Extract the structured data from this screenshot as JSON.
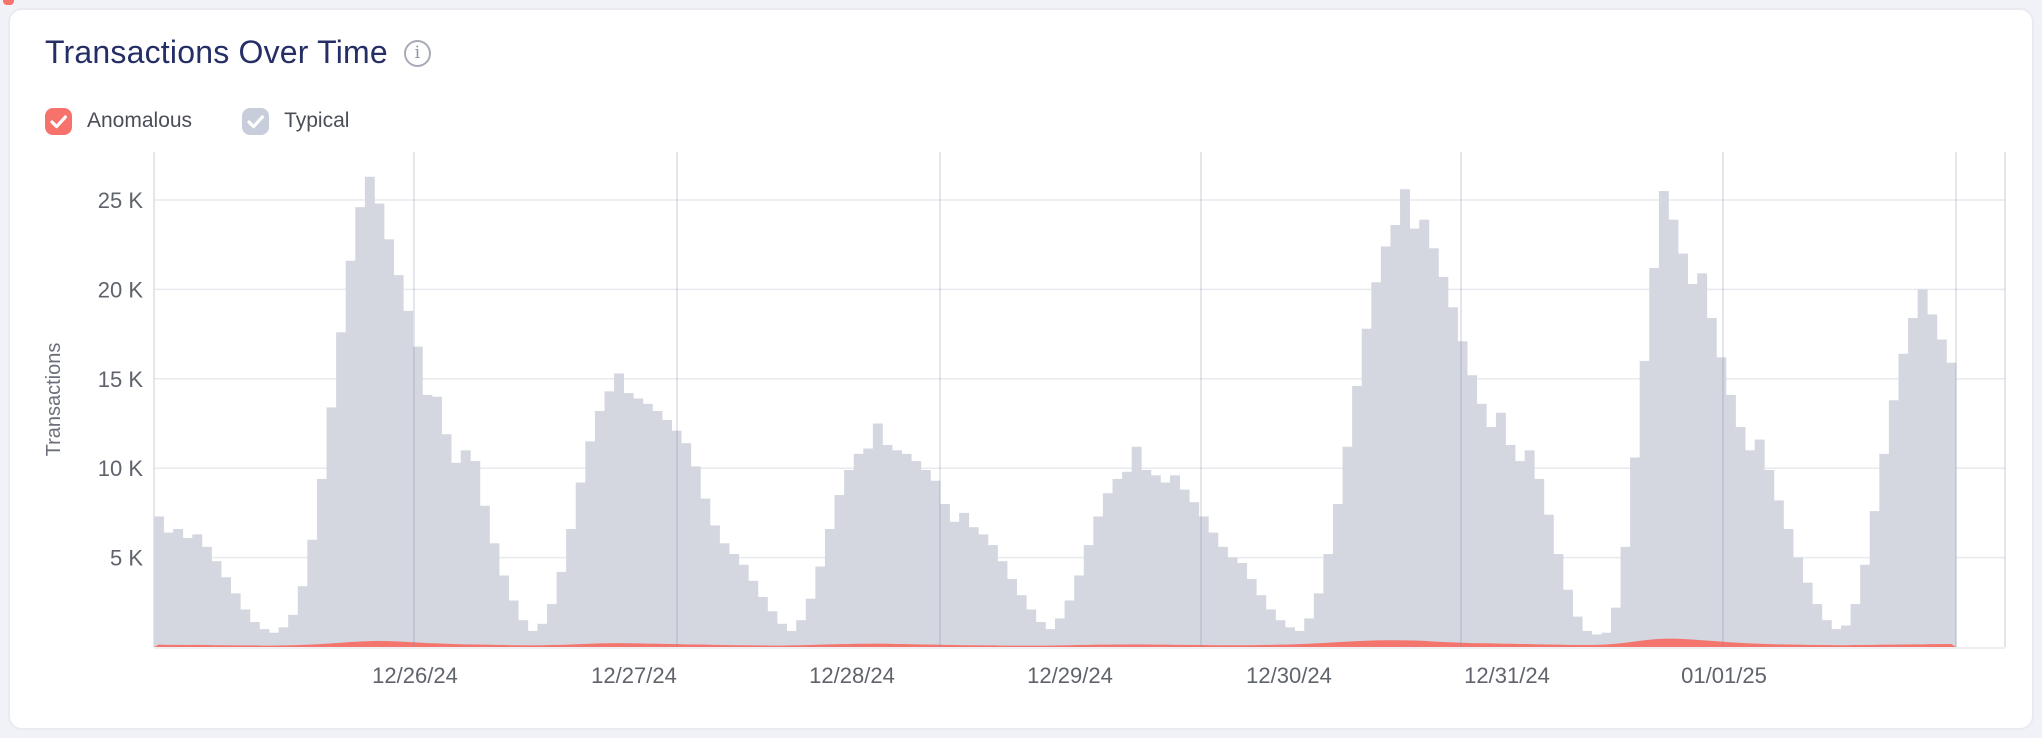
{
  "card": {
    "title": "Transactions Over Time",
    "info_icon_glyph": "i"
  },
  "legend": [
    {
      "label": "Anomalous",
      "checked": true,
      "checkbox_color": "#f7726a"
    },
    {
      "label": "Typical",
      "checked": true,
      "checkbox_color": "#c7cdda"
    }
  ],
  "colors": {
    "background": "#f0f2f7",
    "card_border": "#e9ebf1",
    "title": "#252f66",
    "tick_text": "#5f636b",
    "axis_name_text": "#6b6f7a",
    "h_gridline": "#e9eaef",
    "v_gridline": "rgba(124,134,165,0.28)",
    "axis_line": "#dcdee5",
    "typical_bar": "#d4d7e0",
    "anomalous_area": "#f4756d"
  },
  "chart_data": {
    "type": "bar",
    "title": "Transactions Over Time",
    "xlabel": "",
    "ylabel": "Transactions",
    "x_axis_type": "time",
    "x_tick_labels": [
      "12/26/24",
      "12/27/24",
      "12/28/24",
      "12/29/24",
      "12/30/24",
      "12/31/24",
      "01/01/25"
    ],
    "y_tick_labels": [
      "5 K",
      "10 K",
      "15 K",
      "20 K",
      "25 K"
    ],
    "y_tick_values_thousands": [
      5,
      10,
      15,
      20,
      25
    ],
    "ylim_thousands": [
      0,
      27.8
    ],
    "grid": true,
    "legend_position": "top-left",
    "bucket_count": 188,
    "series": [
      {
        "name": "Typical",
        "color": "#d4d7e0",
        "values_thousands": [
          7.3,
          6.4,
          6.6,
          6.1,
          6.3,
          5.6,
          4.8,
          3.9,
          3.0,
          2.1,
          1.4,
          1.0,
          0.8,
          1.1,
          1.8,
          3.4,
          6.0,
          9.4,
          13.4,
          17.6,
          21.6,
          24.6,
          26.3,
          24.8,
          22.8,
          20.8,
          18.8,
          16.8,
          14.1,
          14.0,
          11.9,
          10.3,
          11.0,
          10.4,
          7.9,
          5.8,
          4.0,
          2.6,
          1.5,
          0.9,
          1.3,
          2.4,
          4.2,
          6.6,
          9.2,
          11.5,
          13.2,
          14.3,
          15.3,
          14.2,
          13.9,
          13.6,
          13.2,
          12.7,
          12.1,
          11.4,
          10.1,
          8.3,
          6.8,
          5.8,
          5.2,
          4.6,
          3.7,
          2.8,
          2.0,
          1.3,
          0.9,
          1.5,
          2.7,
          4.5,
          6.6,
          8.5,
          9.9,
          10.8,
          11.1,
          12.5,
          11.3,
          11.0,
          10.8,
          10.4,
          9.9,
          9.3,
          8.0,
          7.0,
          7.5,
          6.7,
          6.3,
          5.7,
          4.8,
          3.8,
          2.9,
          2.1,
          1.4,
          1.0,
          1.6,
          2.6,
          4.0,
          5.7,
          7.3,
          8.6,
          9.4,
          9.8,
          11.2,
          9.9,
          9.6,
          9.2,
          9.6,
          8.8,
          8.1,
          7.3,
          6.4,
          5.6,
          5.0,
          4.7,
          3.8,
          2.9,
          2.1,
          1.5,
          1.1,
          0.9,
          1.6,
          3.0,
          5.2,
          8.0,
          11.2,
          14.6,
          17.8,
          20.4,
          22.4,
          23.6,
          25.6,
          23.4,
          23.9,
          22.3,
          20.7,
          19.0,
          17.1,
          15.2,
          13.6,
          12.3,
          13.1,
          11.3,
          10.4,
          11.0,
          9.4,
          7.4,
          5.2,
          3.2,
          1.7,
          0.9,
          0.7,
          0.8,
          2.2,
          5.6,
          10.6,
          16.0,
          21.2,
          25.5,
          23.9,
          22.0,
          20.3,
          20.9,
          18.4,
          16.2,
          14.1,
          12.3,
          11.0,
          11.6,
          9.9,
          8.2,
          6.6,
          5.0,
          3.6,
          2.4,
          1.5,
          1.0,
          1.2,
          2.4,
          4.6,
          7.6,
          10.8,
          13.8,
          16.4,
          18.4,
          20.0,
          18.6,
          17.2,
          15.9
        ]
      },
      {
        "name": "Anomalous",
        "color": "#f4756d",
        "values_thousands": [
          0.13,
          0.12,
          0.12,
          0.11,
          0.12,
          0.11,
          0.1,
          0.1,
          0.09,
          0.09,
          0.09,
          0.08,
          0.08,
          0.09,
          0.1,
          0.12,
          0.14,
          0.17,
          0.2,
          0.24,
          0.28,
          0.31,
          0.33,
          0.34,
          0.33,
          0.31,
          0.28,
          0.25,
          0.22,
          0.2,
          0.18,
          0.16,
          0.15,
          0.14,
          0.13,
          0.12,
          0.11,
          0.1,
          0.1,
          0.09,
          0.1,
          0.11,
          0.12,
          0.14,
          0.16,
          0.18,
          0.2,
          0.21,
          0.22,
          0.21,
          0.2,
          0.19,
          0.18,
          0.17,
          0.16,
          0.15,
          0.14,
          0.13,
          0.12,
          0.11,
          0.1,
          0.1,
          0.09,
          0.09,
          0.08,
          0.08,
          0.09,
          0.1,
          0.11,
          0.13,
          0.15,
          0.16,
          0.17,
          0.18,
          0.18,
          0.19,
          0.18,
          0.17,
          0.16,
          0.15,
          0.14,
          0.13,
          0.12,
          0.11,
          0.1,
          0.1,
          0.09,
          0.09,
          0.08,
          0.08,
          0.08,
          0.08,
          0.08,
          0.08,
          0.09,
          0.1,
          0.11,
          0.12,
          0.13,
          0.13,
          0.14,
          0.14,
          0.15,
          0.14,
          0.13,
          0.13,
          0.12,
          0.12,
          0.11,
          0.11,
          0.1,
          0.1,
          0.1,
          0.1,
          0.1,
          0.11,
          0.12,
          0.13,
          0.14,
          0.16,
          0.18,
          0.21,
          0.24,
          0.27,
          0.3,
          0.33,
          0.35,
          0.37,
          0.38,
          0.38,
          0.37,
          0.36,
          0.34,
          0.31,
          0.28,
          0.26,
          0.24,
          0.22,
          0.21,
          0.2,
          0.19,
          0.18,
          0.17,
          0.16,
          0.15,
          0.14,
          0.13,
          0.12,
          0.11,
          0.11,
          0.12,
          0.14,
          0.18,
          0.24,
          0.31,
          0.38,
          0.43,
          0.46,
          0.47,
          0.45,
          0.42,
          0.38,
          0.34,
          0.3,
          0.26,
          0.23,
          0.2,
          0.18,
          0.16,
          0.15,
          0.14,
          0.13,
          0.12,
          0.11,
          0.11,
          0.1,
          0.1,
          0.11,
          0.11,
          0.12,
          0.13,
          0.13,
          0.14,
          0.15,
          0.15,
          0.16,
          0.16,
          0.17
        ]
      }
    ]
  }
}
